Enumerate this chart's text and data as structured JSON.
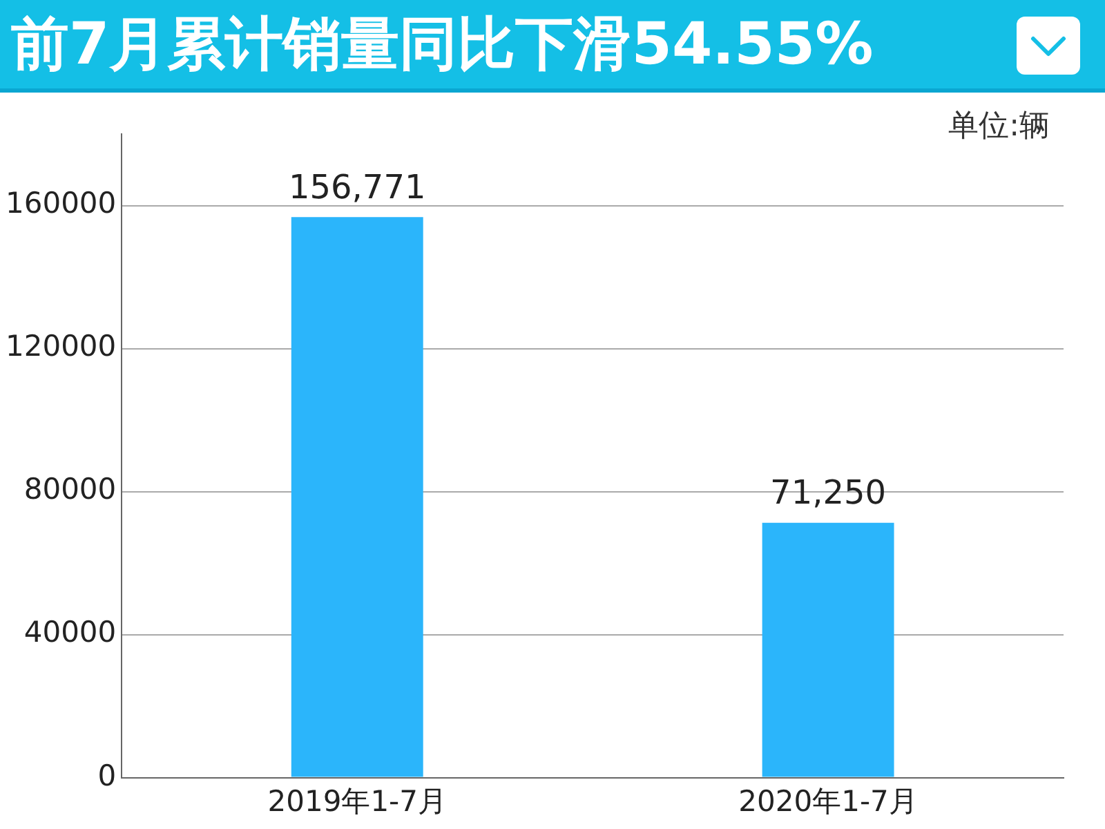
{
  "chart_data": {
    "type": "bar",
    "title": "前7月累计销量同比下滑54.55%",
    "annotations": [
      "单位:辆"
    ],
    "categories": [
      "2019年1-7月",
      "2020年1-7月"
    ],
    "values": [
      156771,
      71250
    ],
    "value_labels": [
      "156,771",
      "71,250"
    ],
    "color": "#2bb5fb",
    "ylim": [
      0,
      180000
    ],
    "yticks": [
      0,
      40000,
      80000,
      120000,
      160000
    ],
    "grid": "y",
    "legend": false
  }
}
